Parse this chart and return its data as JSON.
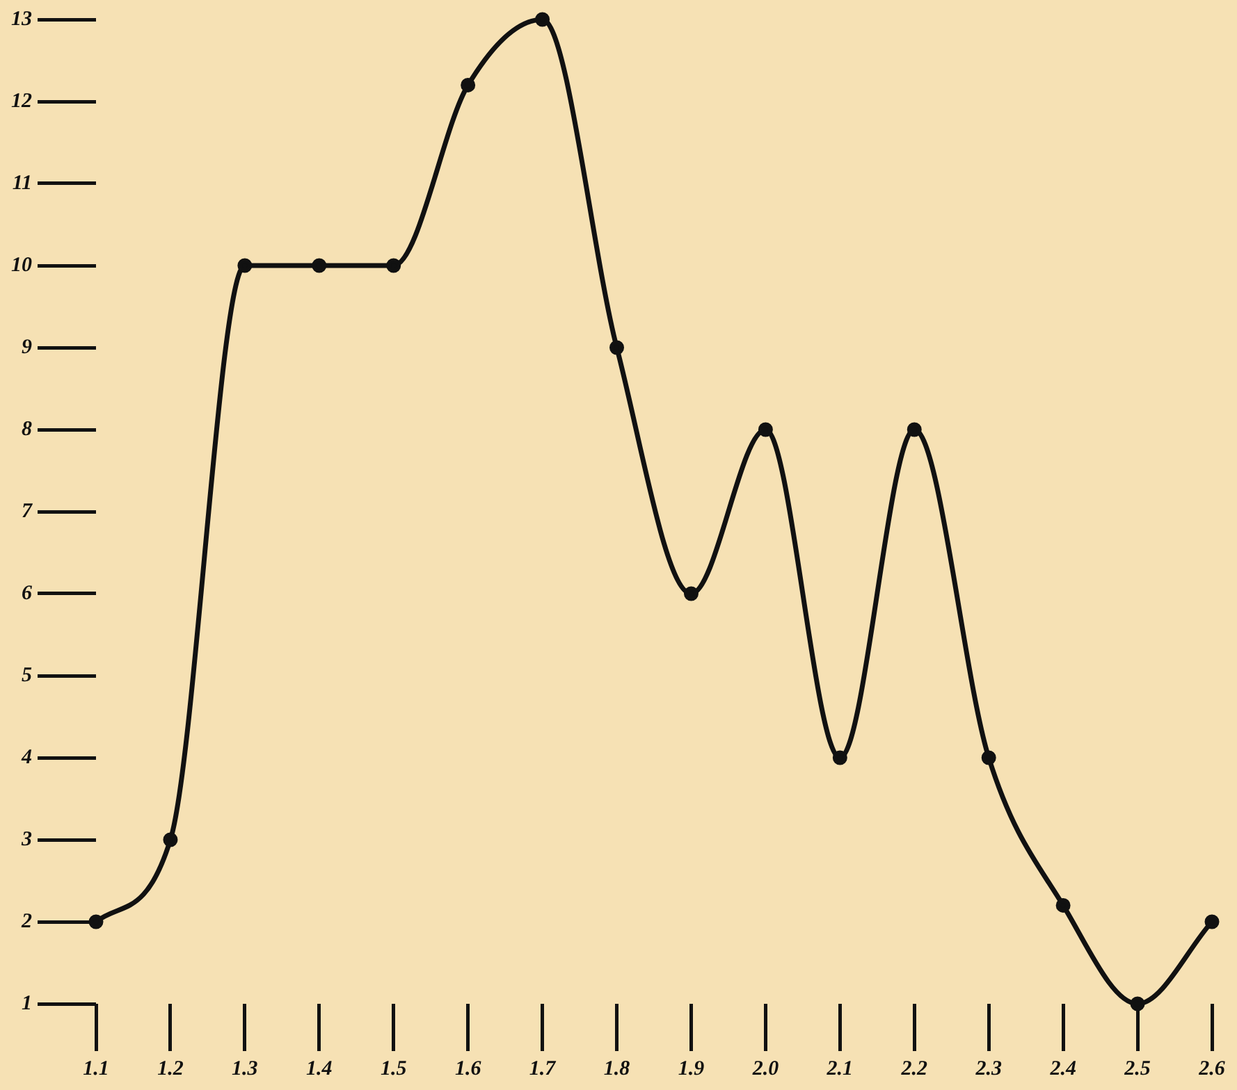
{
  "chart_data": {
    "type": "line",
    "x": [
      1.1,
      1.2,
      1.3,
      1.4,
      1.5,
      1.6,
      1.7,
      1.8,
      1.9,
      2.0,
      2.1,
      2.2,
      2.3,
      2.4,
      2.5,
      2.6
    ],
    "series": [
      {
        "color": "#111111",
        "values": [
          2,
          3,
          10,
          10,
          10,
          12.2,
          13,
          9,
          6,
          8,
          4,
          8,
          4,
          2.2,
          1,
          2
        ]
      }
    ],
    "xlim": [
      1.1,
      2.6
    ],
    "xticks": [
      1.1,
      1.2,
      1.3,
      1.4,
      1.5,
      1.6,
      1.7,
      1.8,
      1.9,
      {
        "value": 2.0,
        "label": "2.0"
      },
      2.1,
      2.2,
      2.3,
      2.4,
      2.5,
      2.6
    ],
    "ylim": [
      1,
      13
    ],
    "yticks": [
      1,
      2,
      3,
      4,
      5,
      6,
      7,
      8,
      9,
      10,
      11,
      12,
      13
    ],
    "grid": false,
    "legend": false,
    "marker": "circle",
    "line_style": "solid"
  }
}
